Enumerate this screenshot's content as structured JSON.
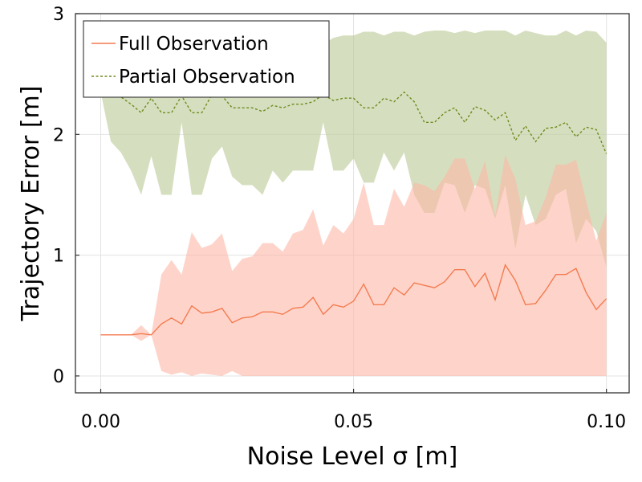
{
  "chart_data": {
    "type": "line",
    "xlabel": "Noise Level σ [m]",
    "ylabel": "Trajectory Error [m]",
    "xlim": [
      -0.005,
      0.1045
    ],
    "ylim": [
      -0.14,
      3.0
    ],
    "xticks": [
      0.0,
      0.05,
      0.1
    ],
    "xtick_labels": [
      "0.00",
      "0.05",
      "0.10"
    ],
    "yticks": [
      0,
      1,
      2,
      3
    ],
    "ytick_labels": [
      "0",
      "1",
      "2",
      "3"
    ],
    "grid": true,
    "legend_position": "top-left",
    "x": [
      0.0,
      0.002,
      0.004,
      0.006,
      0.008,
      0.01,
      0.012,
      0.014,
      0.016,
      0.018,
      0.02,
      0.022,
      0.024,
      0.026,
      0.028,
      0.03,
      0.032,
      0.034,
      0.036,
      0.038,
      0.04,
      0.042,
      0.044,
      0.046,
      0.048,
      0.05,
      0.052,
      0.054,
      0.056,
      0.058,
      0.06,
      0.062,
      0.064,
      0.066,
      0.068,
      0.07,
      0.072,
      0.074,
      0.076,
      0.078,
      0.08,
      0.082,
      0.084,
      0.086,
      0.088,
      0.09,
      0.092,
      0.094,
      0.096,
      0.098,
      0.1
    ],
    "series": [
      {
        "name": "Full Observation",
        "style": "solid",
        "color": "#f47b50",
        "fill_color": "#fdb8a6",
        "values": [
          0.34,
          0.34,
          0.34,
          0.34,
          0.35,
          0.34,
          0.43,
          0.48,
          0.43,
          0.58,
          0.52,
          0.53,
          0.56,
          0.44,
          0.48,
          0.49,
          0.53,
          0.53,
          0.51,
          0.56,
          0.57,
          0.65,
          0.51,
          0.59,
          0.57,
          0.62,
          0.76,
          0.59,
          0.59,
          0.73,
          0.67,
          0.77,
          0.75,
          0.73,
          0.78,
          0.88,
          0.88,
          0.74,
          0.85,
          0.63,
          0.92,
          0.79,
          0.59,
          0.6,
          0.71,
          0.84,
          0.84,
          0.89,
          0.69,
          0.55,
          0.64
        ],
        "upper": [
          0.34,
          0.34,
          0.34,
          0.34,
          0.42,
          0.34,
          0.84,
          0.96,
          0.84,
          1.19,
          1.06,
          1.09,
          1.18,
          0.87,
          0.97,
          0.99,
          1.1,
          1.1,
          1.03,
          1.18,
          1.21,
          1.38,
          1.08,
          1.25,
          1.18,
          1.3,
          1.6,
          1.25,
          1.25,
          1.55,
          1.4,
          1.6,
          1.58,
          1.53,
          1.65,
          1.8,
          1.8,
          1.55,
          1.78,
          1.32,
          1.83,
          1.63,
          1.25,
          1.28,
          1.48,
          1.75,
          1.75,
          1.79,
          1.45,
          1.12,
          1.35
        ],
        "lower": [
          0.34,
          0.34,
          0.34,
          0.34,
          0.29,
          0.34,
          0.04,
          0.01,
          0.03,
          0.0,
          0.02,
          0.01,
          0.0,
          0.04,
          0.0,
          0.0,
          0.0,
          0.0,
          0.0,
          0.0,
          0.0,
          0.0,
          0.0,
          0.0,
          0.0,
          0.0,
          0.0,
          0.0,
          0.0,
          0.0,
          0.0,
          0.0,
          0.0,
          0.0,
          0.0,
          0.0,
          0.0,
          0.0,
          0.0,
          0.0,
          0.0,
          0.0,
          0.0,
          0.0,
          0.0,
          0.0,
          0.0,
          0.0,
          0.0,
          0.0,
          0.0
        ]
      },
      {
        "name": "Partial Observation",
        "style": "dashed",
        "color": "#6f8a1f",
        "fill_color": "#b9c995",
        "values": [
          2.35,
          2.35,
          2.31,
          2.25,
          2.18,
          2.3,
          2.18,
          2.18,
          2.32,
          2.18,
          2.18,
          2.33,
          2.32,
          2.22,
          2.22,
          2.22,
          2.19,
          2.24,
          2.22,
          2.25,
          2.25,
          2.27,
          2.33,
          2.28,
          2.3,
          2.3,
          2.22,
          2.22,
          2.3,
          2.27,
          2.35,
          2.27,
          2.1,
          2.1,
          2.18,
          2.22,
          2.1,
          2.23,
          2.2,
          2.12,
          2.18,
          1.95,
          2.07,
          1.94,
          2.05,
          2.06,
          2.1,
          1.98,
          2.06,
          2.04,
          1.84
        ],
        "upper": [
          2.75,
          2.8,
          2.82,
          2.82,
          2.82,
          2.78,
          2.8,
          2.82,
          2.78,
          2.8,
          2.82,
          2.82,
          2.82,
          2.82,
          2.8,
          2.82,
          2.82,
          2.82,
          2.82,
          2.8,
          2.82,
          2.82,
          2.75,
          2.8,
          2.82,
          2.82,
          2.85,
          2.85,
          2.82,
          2.85,
          2.85,
          2.82,
          2.85,
          2.86,
          2.86,
          2.84,
          2.86,
          2.84,
          2.86,
          2.86,
          2.86,
          2.82,
          2.86,
          2.84,
          2.82,
          2.82,
          2.86,
          2.82,
          2.86,
          2.85,
          2.76
        ],
        "lower": [
          2.35,
          1.94,
          1.85,
          1.7,
          1.5,
          1.82,
          1.5,
          1.5,
          2.1,
          1.5,
          1.5,
          1.8,
          1.9,
          1.65,
          1.58,
          1.58,
          1.5,
          1.7,
          1.6,
          1.7,
          1.7,
          1.7,
          2.1,
          1.7,
          1.7,
          1.8,
          1.6,
          1.6,
          1.85,
          1.7,
          1.85,
          1.5,
          1.35,
          1.35,
          1.6,
          1.58,
          1.35,
          1.58,
          1.55,
          1.3,
          1.58,
          1.05,
          1.5,
          1.25,
          1.3,
          1.5,
          1.55,
          1.1,
          1.3,
          1.2,
          0.9
        ]
      }
    ]
  }
}
